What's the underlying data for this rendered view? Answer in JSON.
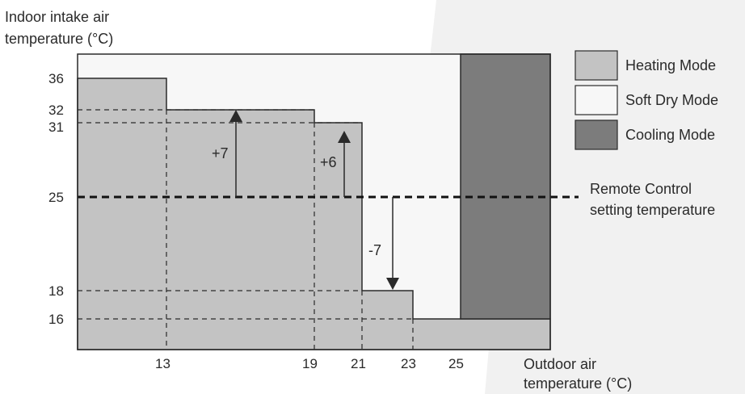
{
  "y_axis_label": [
    "Indoor intake air",
    "temperature (°C)"
  ],
  "x_axis_label": [
    "Outdoor air",
    "temperature (°C)"
  ],
  "y_ticks": [
    "36",
    "32",
    "31",
    "25",
    "18",
    "16"
  ],
  "x_ticks": [
    "13",
    "19",
    "21",
    "23",
    "25"
  ],
  "legend": [
    {
      "key": "heating",
      "label": "Heating Mode",
      "color": "#c3c3c3"
    },
    {
      "key": "softdry",
      "label": "Soft Dry Mode",
      "color": "#f7f7f7"
    },
    {
      "key": "cooling",
      "label": "Cooling Mode",
      "color": "#7c7c7c"
    }
  ],
  "remote_label": [
    "Remote Control",
    "setting temperature"
  ],
  "arrows": [
    {
      "label": "+7",
      "x": 16,
      "from": 25,
      "to": 32
    },
    {
      "label": "+6",
      "x": 20.5,
      "from": 25,
      "to": 31
    },
    {
      "label": "-7",
      "x": 22.5,
      "from": 25,
      "to": 18
    }
  ],
  "heating_steps": [
    {
      "x_from": 13,
      "x_to": 13,
      "y": 36
    },
    {
      "x_from": 13,
      "x_to": 19,
      "y": 32
    },
    {
      "x_from": 19,
      "x_to": 21,
      "y": 31
    },
    {
      "x_from": 21,
      "x_to": 23,
      "y": 18
    },
    {
      "x_from": 23,
      "x_to": 25,
      "y": 16
    }
  ],
  "remote_setting_y": 25
}
